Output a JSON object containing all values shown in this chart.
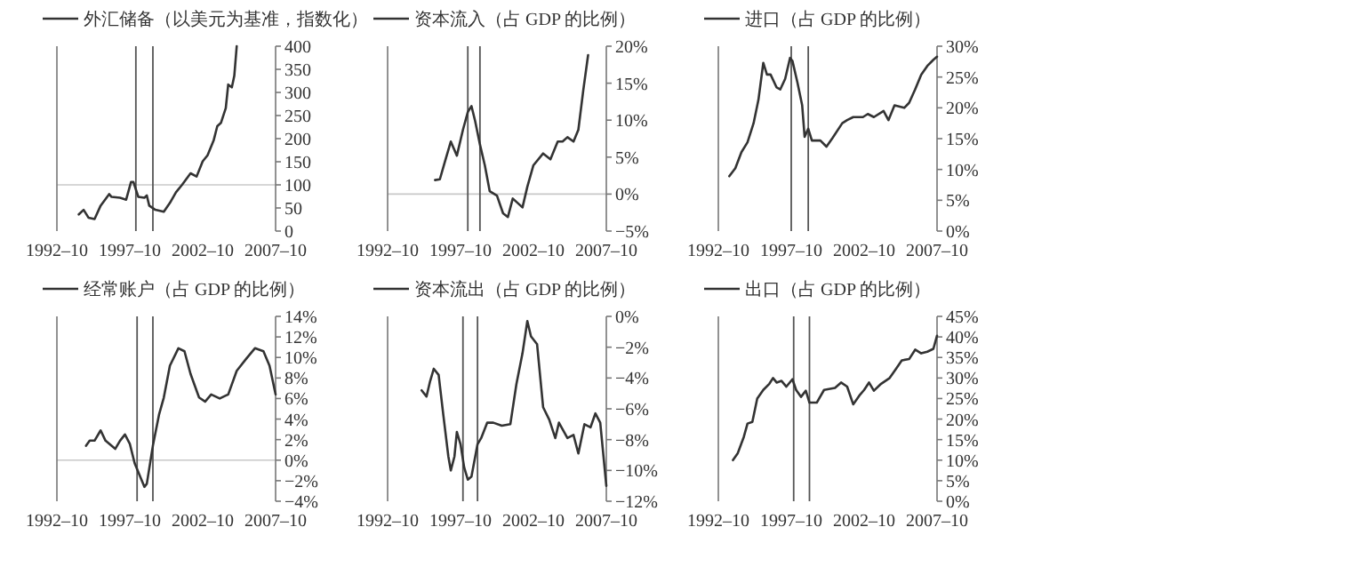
{
  "chart_data": [
    {
      "type": "line",
      "legend": "top",
      "xlim": [
        "1992-10",
        "2007-10"
      ],
      "ylim": [
        0,
        400
      ],
      "xticks": [
        {
          "value": "1992-10",
          "label": "1992–10"
        },
        {
          "value": "1997-10",
          "label": "1997–10"
        },
        {
          "value": "2002-10",
          "label": "2002–10"
        },
        {
          "value": "2007-10",
          "label": "2007–10"
        }
      ],
      "yticks": [
        0,
        50,
        100,
        150,
        200,
        250,
        300,
        350,
        400
      ],
      "ref_lines": [
        {
          "axis": "y",
          "value": 100,
          "color": "#c8c8c8"
        },
        {
          "axis": "x",
          "value": "1998-03",
          "color": "#555555"
        },
        {
          "axis": "x",
          "value": "1999-05",
          "color": "#555555"
        }
      ],
      "series": [
        {
          "name": "外汇储备（以美元为基准，指数化）",
          "color": "#333333",
          "x": [
            "1994-04",
            "1994-08",
            "1994-12",
            "1995-05",
            "1995-10",
            "1996-05",
            "1996-07",
            "1997-02",
            "1997-07",
            "1997-11",
            "1998-01",
            "1998-05",
            "1998-10",
            "1998-12",
            "1999-02",
            "1999-07",
            "2000-02",
            "2000-07",
            "2000-12",
            "2001-05",
            "2001-12",
            "2002-05",
            "2002-10",
            "2003-02",
            "2003-07",
            "2003-10",
            "2004-01",
            "2004-05",
            "2004-07",
            "2004-10",
            "2004-12",
            "2005-02"
          ],
          "values": [
            36,
            46,
            29,
            26,
            55,
            80,
            74,
            72,
            68,
            106,
            106,
            74,
            72,
            77,
            55,
            46,
            42,
            61,
            84,
            100,
            125,
            118,
            151,
            164,
            196,
            227,
            234,
            266,
            317,
            311,
            336,
            400
          ]
        }
      ]
    },
    {
      "type": "line",
      "legend": "top",
      "xlim": [
        "1992-10",
        "2007-10"
      ],
      "ylim": [
        -5,
        20
      ],
      "xticks": [
        {
          "value": "1992-10",
          "label": "1992–10"
        },
        {
          "value": "1997-10",
          "label": "1997–10"
        },
        {
          "value": "2002-10",
          "label": "2002–10"
        },
        {
          "value": "2007-10",
          "label": "2007–10"
        }
      ],
      "yticks": [
        {
          "value": -5,
          "label": "−5%"
        },
        {
          "value": 0,
          "label": "0%"
        },
        {
          "value": 5,
          "label": "5%"
        },
        {
          "value": 10,
          "label": "10%"
        },
        {
          "value": 15,
          "label": "15%"
        },
        {
          "value": 20,
          "label": "20%"
        }
      ],
      "ref_lines": [
        {
          "axis": "y",
          "value": 0,
          "color": "#c8c8c8"
        },
        {
          "axis": "x",
          "value": "1998-04",
          "color": "#555555"
        },
        {
          "axis": "x",
          "value": "1999-02",
          "color": "#555555"
        }
      ],
      "series": [
        {
          "name": "资本流入（占 GDP 的比例）",
          "color": "#333333",
          "x": [
            "1996-01",
            "1996-05",
            "1996-09",
            "1997-02",
            "1997-07",
            "1997-12",
            "1998-04",
            "1998-07",
            "1998-10",
            "1999-02",
            "1999-06",
            "1999-10",
            "2000-04",
            "2000-09",
            "2001-01",
            "2001-05",
            "2001-09",
            "2002-01",
            "2002-05",
            "2002-10",
            "2003-06",
            "2003-12",
            "2004-06",
            "2004-10",
            "2005-02",
            "2005-07",
            "2005-11",
            "2006-03",
            "2006-07"
          ],
          "values": [
            1.9,
            2.0,
            4.3,
            7.1,
            5.2,
            8.7,
            11.1,
            11.9,
            9.9,
            6.7,
            3.9,
            0.4,
            -0.2,
            -2.6,
            -3.1,
            -0.6,
            -1.2,
            -1.8,
            1.0,
            3.9,
            5.5,
            4.7,
            7.1,
            7.1,
            7.7,
            7.1,
            8.7,
            14.0,
            18.8
          ]
        }
      ]
    },
    {
      "type": "line",
      "legend": "top",
      "xlim": [
        "1992-10",
        "2007-10"
      ],
      "ylim": [
        0,
        30
      ],
      "xticks": [
        {
          "value": "1992-10",
          "label": "1992–10"
        },
        {
          "value": "1997-10",
          "label": "1997–10"
        },
        {
          "value": "2002-10",
          "label": "2002–10"
        },
        {
          "value": "2007-10",
          "label": "2007–10"
        }
      ],
      "yticks": [
        {
          "value": 0,
          "label": "0%"
        },
        {
          "value": 5,
          "label": "5%"
        },
        {
          "value": 10,
          "label": "10%"
        },
        {
          "value": 15,
          "label": "15%"
        },
        {
          "value": 20,
          "label": "20%"
        },
        {
          "value": 25,
          "label": "25%"
        },
        {
          "value": 30,
          "label": "30%"
        }
      ],
      "ref_lines": [
        {
          "axis": "x",
          "value": "1997-10",
          "color": "#555555"
        },
        {
          "axis": "x",
          "value": "1998-12",
          "color": "#555555"
        }
      ],
      "series": [
        {
          "name": "进口（占 GDP 的比例）",
          "color": "#333333",
          "x": [
            "1993-07",
            "1993-12",
            "1994-05",
            "1994-10",
            "1995-03",
            "1995-07",
            "1995-11",
            "1996-02",
            "1996-05",
            "1996-10",
            "1997-01",
            "1997-05",
            "1997-09",
            "1997-11",
            "1998-03",
            "1998-07",
            "1998-09",
            "1998-12",
            "1999-03",
            "1999-10",
            "2000-03",
            "2000-08",
            "2001-04",
            "2001-08",
            "2002-01",
            "2002-09",
            "2003-01",
            "2003-06",
            "2004-02",
            "2004-06",
            "2004-11",
            "2005-07",
            "2005-11",
            "2006-04",
            "2006-09",
            "2007-02",
            "2007-07",
            "2007-10"
          ],
          "values": [
            8.9,
            10.2,
            12.8,
            14.4,
            17.5,
            21.3,
            27.3,
            25.4,
            25.4,
            23.3,
            23.0,
            24.7,
            28.1,
            27.6,
            24.2,
            20.4,
            15.3,
            16.6,
            14.7,
            14.7,
            13.7,
            15.1,
            17.5,
            18.0,
            18.5,
            18.5,
            19.0,
            18.5,
            19.5,
            18.0,
            20.4,
            20.0,
            20.8,
            23.0,
            25.4,
            26.8,
            27.8,
            28.3
          ]
        }
      ]
    },
    {
      "type": "line",
      "legend": "top",
      "xlim": [
        "1992-10",
        "2007-10"
      ],
      "ylim": [
        -4,
        14
      ],
      "xticks": [
        {
          "value": "1992-10",
          "label": "1992–10"
        },
        {
          "value": "1997-10",
          "label": "1997–10"
        },
        {
          "value": "2002-10",
          "label": "2002–10"
        },
        {
          "value": "2007-10",
          "label": "2007–10"
        }
      ],
      "yticks": [
        {
          "value": -4,
          "label": "−4%"
        },
        {
          "value": -2,
          "label": "−2%"
        },
        {
          "value": 0,
          "label": "0%"
        },
        {
          "value": 2,
          "label": "2%"
        },
        {
          "value": 4,
          "label": "4%"
        },
        {
          "value": 6,
          "label": "6%"
        },
        {
          "value": 8,
          "label": "8%"
        },
        {
          "value": 10,
          "label": "10%"
        },
        {
          "value": 12,
          "label": "12%"
        },
        {
          "value": 14,
          "label": "14%"
        }
      ],
      "ref_lines": [
        {
          "axis": "y",
          "value": 0,
          "color": "#c8c8c8"
        },
        {
          "axis": "x",
          "value": "1998-04",
          "color": "#555555"
        },
        {
          "axis": "x",
          "value": "1999-05",
          "color": "#555555"
        }
      ],
      "series": [
        {
          "name": "经常账户（占 GDP 的比例）",
          "color": "#333333",
          "x": [
            "1994-10",
            "1995-01",
            "1995-05",
            "1995-10",
            "1996-02",
            "1996-10",
            "1997-02",
            "1997-06",
            "1997-10",
            "1998-02",
            "1998-10",
            "1998-12",
            "1999-05",
            "1999-10",
            "2000-02",
            "2000-07",
            "2001-02",
            "2001-07",
            "2001-12",
            "2002-07",
            "2002-12",
            "2003-05",
            "2003-12",
            "2004-07",
            "2005-02",
            "2005-10",
            "2006-05",
            "2006-12",
            "2007-05",
            "2007-10"
          ],
          "values": [
            1.4,
            1.9,
            1.9,
            2.9,
            1.9,
            1.1,
            1.9,
            2.5,
            1.6,
            -0.3,
            -2.6,
            -2.3,
            1.4,
            4.4,
            6.1,
            9.2,
            10.9,
            10.6,
            8.4,
            6.1,
            5.7,
            6.4,
            6.0,
            6.4,
            8.7,
            9.9,
            10.9,
            10.6,
            9.2,
            6.4
          ]
        }
      ]
    },
    {
      "type": "line",
      "legend": "top",
      "xlim": [
        "1992-10",
        "2007-10"
      ],
      "ylim": [
        -12,
        0
      ],
      "xticks": [
        {
          "value": "1992-10",
          "label": "1992–10"
        },
        {
          "value": "1997-10",
          "label": "1997–10"
        },
        {
          "value": "2002-10",
          "label": "2002–10"
        },
        {
          "value": "2007-10",
          "label": "2007–10"
        }
      ],
      "yticks": [
        {
          "value": -12,
          "label": "−12%"
        },
        {
          "value": -10,
          "label": "−10%"
        },
        {
          "value": -8,
          "label": "−8%"
        },
        {
          "value": -6,
          "label": "−6%"
        },
        {
          "value": -4,
          "label": "−4%"
        },
        {
          "value": -2,
          "label": "−2%"
        },
        {
          "value": 0,
          "label": "0%"
        }
      ],
      "ref_lines": [
        {
          "axis": "x",
          "value": "1997-12",
          "color": "#555555"
        },
        {
          "axis": "x",
          "value": "1998-12",
          "color": "#555555"
        }
      ],
      "series": [
        {
          "name": "资本流出（占 GDP 的比例）",
          "color": "#333333",
          "x": [
            "1995-02",
            "1995-06",
            "1995-09",
            "1995-12",
            "1996-04",
            "1996-08",
            "1996-12",
            "1997-02",
            "1997-05",
            "1997-07",
            "1997-10",
            "1998-01",
            "1998-04",
            "1998-07",
            "1998-12",
            "1999-03",
            "1999-08",
            "2000-01",
            "2000-08",
            "2001-03",
            "2001-08",
            "2002-01",
            "2002-05",
            "2002-08",
            "2003-01",
            "2003-06",
            "2003-11",
            "2004-04",
            "2004-07",
            "2005-02",
            "2005-07",
            "2005-11",
            "2006-04",
            "2006-09",
            "2007-01",
            "2007-05",
            "2007-10"
          ],
          "values": [
            -4.8,
            -5.2,
            -4.2,
            -3.4,
            -3.8,
            -6.5,
            -9.1,
            -10.0,
            -9.1,
            -7.5,
            -8.3,
            -9.8,
            -10.6,
            -10.4,
            -8.3,
            -7.9,
            -6.9,
            -6.9,
            -7.1,
            -7.0,
            -4.4,
            -2.4,
            -0.3,
            -1.3,
            -1.8,
            -5.9,
            -6.7,
            -7.9,
            -6.9,
            -7.9,
            -7.7,
            -8.9,
            -7.0,
            -7.2,
            -6.3,
            -6.9,
            -11.0
          ]
        }
      ]
    },
    {
      "type": "line",
      "legend": "top",
      "xlim": [
        "1992-10",
        "2007-10"
      ],
      "ylim": [
        0,
        45
      ],
      "xticks": [
        {
          "value": "1992-10",
          "label": "1992–10"
        },
        {
          "value": "1997-10",
          "label": "1997–10"
        },
        {
          "value": "2002-10",
          "label": "2002–10"
        },
        {
          "value": "2007-10",
          "label": "2007–10"
        }
      ],
      "yticks": [
        {
          "value": 0,
          "label": "0%"
        },
        {
          "value": 5,
          "label": "5%"
        },
        {
          "value": 10,
          "label": "10%"
        },
        {
          "value": 15,
          "label": "15%"
        },
        {
          "value": 20,
          "label": "20%"
        },
        {
          "value": 25,
          "label": "25%"
        },
        {
          "value": 30,
          "label": "30%"
        },
        {
          "value": 35,
          "label": "35%"
        },
        {
          "value": 40,
          "label": "40%"
        },
        {
          "value": 45,
          "label": "45%"
        }
      ],
      "ref_lines": [
        {
          "axis": "x",
          "value": "1997-12",
          "color": "#555555"
        },
        {
          "axis": "x",
          "value": "1999-01",
          "color": "#555555"
        }
      ],
      "series": [
        {
          "name": "出口（占 GDP 的比例）",
          "color": "#333333",
          "x": [
            "1993-10",
            "1994-02",
            "1994-07",
            "1994-10",
            "1995-02",
            "1995-06",
            "1995-11",
            "1996-04",
            "1996-07",
            "1996-10",
            "1997-02",
            "1997-06",
            "1997-11",
            "1998-02",
            "1998-06",
            "1998-10",
            "1999-01",
            "1999-07",
            "2000-01",
            "2000-10",
            "2001-03",
            "2001-08",
            "2002-01",
            "2002-06",
            "2002-10",
            "2003-02",
            "2003-06",
            "2003-12",
            "2004-07",
            "2004-12",
            "2005-05",
            "2005-11",
            "2006-04",
            "2006-09",
            "2007-02",
            "2007-07",
            "2007-10"
          ],
          "values": [
            10,
            11.7,
            15.7,
            18.9,
            19.3,
            25,
            27.1,
            28.6,
            30,
            28.9,
            29.3,
            27.9,
            29.7,
            27.1,
            25.4,
            26.9,
            24,
            24,
            27.1,
            27.6,
            28.9,
            27.9,
            23.6,
            25.7,
            27.1,
            28.9,
            26.9,
            28.6,
            30,
            32.1,
            34.3,
            34.6,
            36.9,
            36,
            36.4,
            37.1,
            40.3
          ]
        }
      ]
    }
  ]
}
